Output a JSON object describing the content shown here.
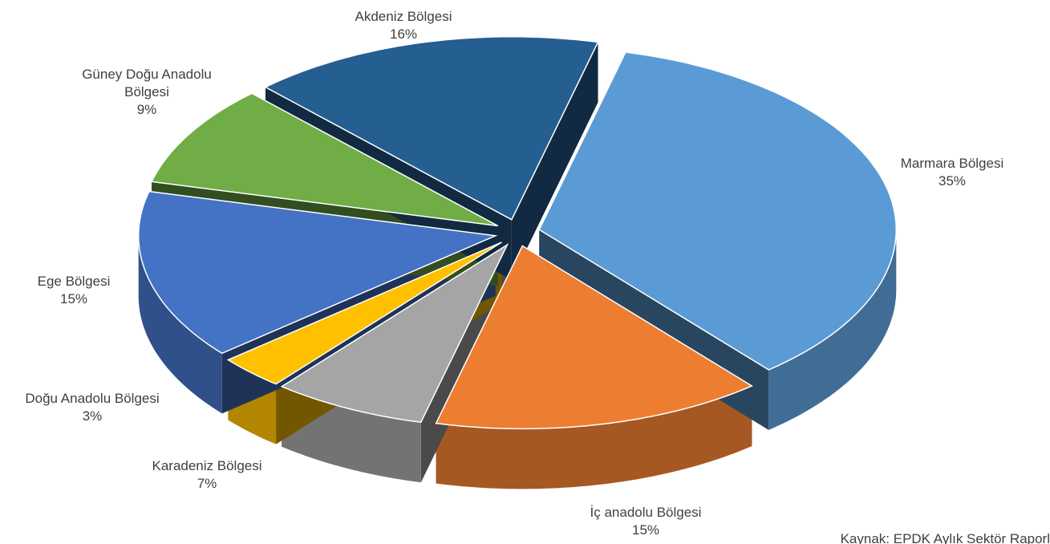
{
  "chart_data": {
    "type": "pie",
    "categories": [
      "Marmara Bölgesi",
      "İç anadolu Bölgesi",
      "Karadeniz Bölgesi",
      "Doğu Anadolu Bölgesi",
      "Ege Bölgesi",
      "Güney Doğu Anadolu Bölgesi",
      "Akdeniz Bölgesi"
    ],
    "values": [
      35,
      15,
      7,
      3,
      15,
      9,
      16
    ],
    "value_labels": [
      "35%",
      "15%",
      "7%",
      "3%",
      "15%",
      "9%",
      "16%"
    ],
    "colors": [
      "#5b9bd5",
      "#ed7d31",
      "#a5a5a5",
      "#ffc000",
      "#4472c4",
      "#70ad47",
      "#255e91"
    ],
    "source": "Kaynak: EPDK Aylık Sektör Raporl"
  }
}
